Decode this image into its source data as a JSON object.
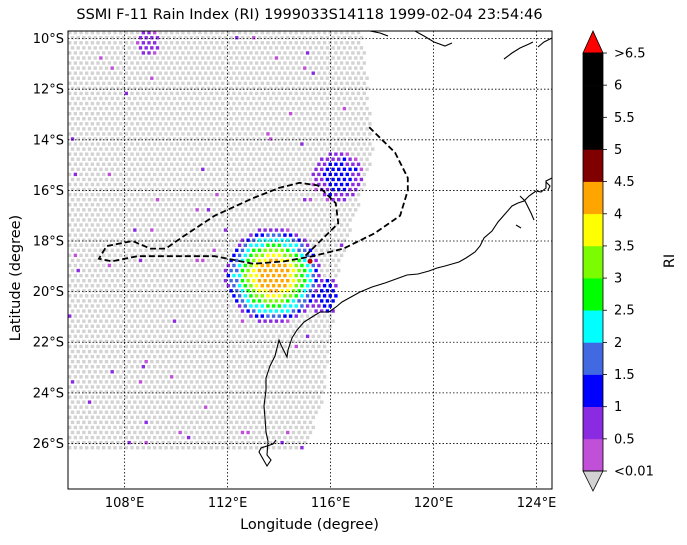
{
  "title": "SSMI F-11 Rain Index (RI) 1999033S14118 1999-02-04 23:54:46",
  "xlabel": "Longitude (degree)",
  "ylabel": "Latitude (degree)",
  "colorbar": {
    "label": "RI",
    "tick_labels": [
      "<0.01",
      "0.5",
      "1",
      "1.5",
      "2",
      "2.5",
      "3",
      "3.5",
      "4",
      "4.5",
      "5",
      "5.5",
      "6",
      ">6.5"
    ],
    "colors": [
      "#c050d8",
      "#8a2be2",
      "#0000ff",
      "#4169e1",
      "#00ffff",
      "#00ff00",
      "#7cfc00",
      "#ffff00",
      "#ffa500",
      "#800000",
      "#000000",
      "#000000",
      "#000000"
    ],
    "under_color": "#d3d3d3",
    "over_color": "#ff0000"
  },
  "chart_data": {
    "type": "heatmap",
    "extent": {
      "lon": [
        105.8,
        124.6
      ],
      "lat": [
        -27.8,
        -9.7
      ]
    },
    "x_ticks": {
      "values": [
        108,
        112,
        116,
        120,
        124
      ],
      "labels": [
        "108°E",
        "112°E",
        "116°E",
        "120°E",
        "124°E"
      ]
    },
    "y_ticks": {
      "values": [
        -10,
        -12,
        -14,
        -16,
        -18,
        -20,
        -22,
        -24,
        -26
      ],
      "labels": [
        "10°S",
        "12°S",
        "14°S",
        "16°S",
        "18°S",
        "20°S",
        "22°S",
        "24°S",
        "26°S"
      ]
    },
    "grid": true,
    "swath_east_edge": [
      [
        -9.7,
        117.2
      ],
      [
        -14.5,
        117.6
      ],
      [
        -19.0,
        116.3
      ],
      [
        -24.5,
        115.6
      ],
      [
        -26.0,
        115.0
      ]
    ],
    "track": [
      [
        -13.5,
        117.5
      ],
      [
        -14.5,
        118.5
      ],
      [
        -15.5,
        119.0
      ],
      [
        -16.0,
        119.0
      ],
      [
        -17.0,
        118.7
      ],
      [
        -17.7,
        117.7
      ],
      [
        -18.3,
        116.5
      ],
      [
        -18.6,
        115.3
      ],
      [
        -18.8,
        114.2
      ],
      [
        -18.9,
        113.0
      ],
      [
        -18.6,
        111.5
      ],
      [
        -18.6,
        110.0
      ],
      [
        -18.6,
        108.5
      ],
      [
        -18.8,
        107.5
      ],
      [
        -18.7,
        107.0
      ],
      [
        -18.2,
        107.3
      ],
      [
        -18.0,
        108.3
      ],
      [
        -18.3,
        109.0
      ],
      [
        -18.3,
        109.6
      ],
      [
        -17.8,
        110.3
      ],
      [
        -17.0,
        111.5
      ],
      [
        -16.3,
        113.0
      ],
      [
        -15.9,
        114.0
      ],
      [
        -15.7,
        114.8
      ],
      [
        -15.8,
        115.5
      ],
      [
        -16.5,
        116.2
      ],
      [
        -17.3,
        116.3
      ],
      [
        -18.0,
        115.6
      ],
      [
        -18.6,
        115.0
      ]
    ],
    "storm_marker": {
      "lat": -18.8,
      "lon": 115.2
    },
    "rain_areas": [
      {
        "lat": -19.3,
        "lon": 113.7,
        "radius_deg": 1.9,
        "peak": 4.5
      },
      {
        "lat": -15.4,
        "lon": 116.2,
        "radius_deg": 1.0,
        "peak": 1.5
      },
      {
        "lat": -20.1,
        "lon": 115.8,
        "radius_deg": 0.8,
        "peak": 1.5
      },
      {
        "lat": -10.1,
        "lon": 108.8,
        "radius_deg": 0.5,
        "peak": 1.0
      }
    ]
  }
}
